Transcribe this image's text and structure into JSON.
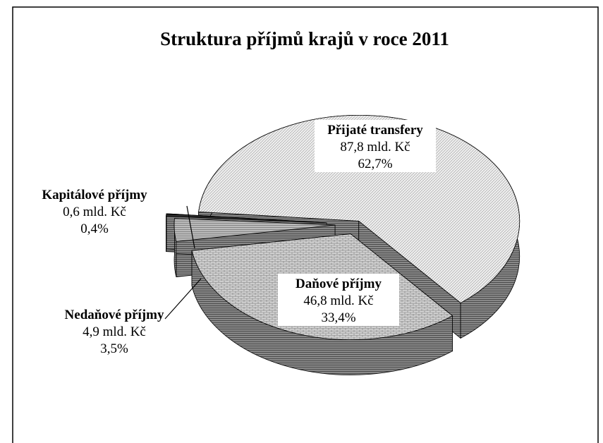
{
  "chart_data": {
    "type": "pie3d",
    "title": "Struktura příjmů krajů v roce 2011",
    "categories": [
      "Přijaté transfery",
      "Daňové příjmy",
      "Nedaňové příjmy",
      "Kapitálové příjmy"
    ],
    "values": [
      62.7,
      33.4,
      3.5,
      0.4
    ],
    "value_labels": [
      "62,7%",
      "33,4%",
      "3,5%",
      "0,4%"
    ],
    "amounts": [
      87.8,
      46.8,
      4.9,
      0.6
    ],
    "amount_labels": [
      "87,8 mld. Kč",
      "46,8 mld. Kč",
      "4,9 mld. Kč",
      "0,6 mld. Kč"
    ]
  }
}
